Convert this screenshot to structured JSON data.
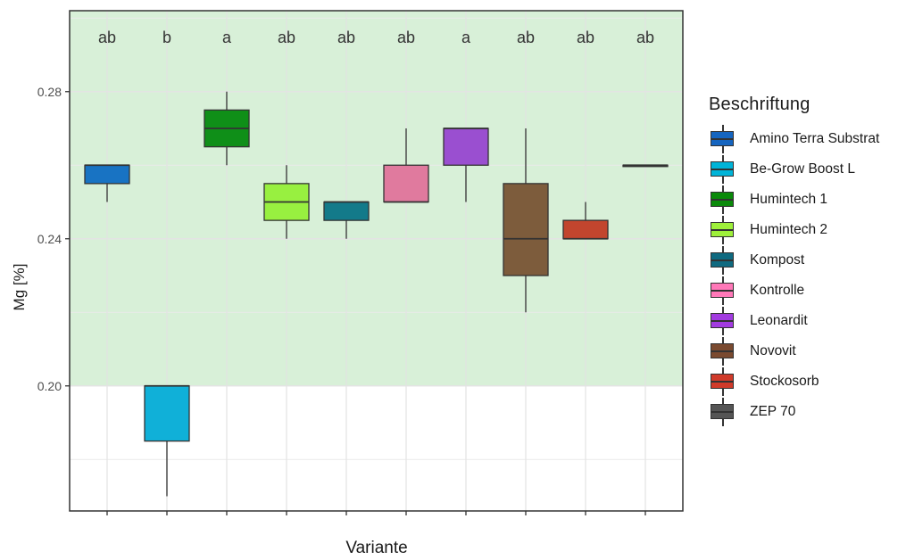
{
  "chart_data": {
    "type": "boxplot",
    "xlabel": "Variante",
    "ylabel": "Mg [%]",
    "ylim": [
      0.166,
      0.302
    ],
    "yticks": [
      "0.20",
      "0.24",
      "0.28"
    ],
    "ytick_values": [
      0.2,
      0.24,
      0.28
    ],
    "reference_band": {
      "from": 0.2,
      "to": 0.302,
      "color": "#d8f0d8"
    },
    "legend_title": "Beschriftung",
    "groups": [
      {
        "name": "Amino Terra Substrat",
        "color": "#1873c3",
        "letter": "ab",
        "min": 0.25,
        "q1": 0.255,
        "median": 0.26,
        "q3": 0.26,
        "max": 0.26
      },
      {
        "name": "Be-Grow Boost L",
        "color": "#10b0d8",
        "letter": "b",
        "min": 0.17,
        "q1": 0.185,
        "median": 0.2,
        "q3": 0.2,
        "max": 0.2
      },
      {
        "name": "Humintech 1",
        "color": "#0f8f18",
        "letter": "a",
        "min": 0.26,
        "q1": 0.265,
        "median": 0.27,
        "q3": 0.275,
        "max": 0.28
      },
      {
        "name": "Humintech 2",
        "color": "#98f040",
        "letter": "ab",
        "min": 0.24,
        "q1": 0.245,
        "median": 0.25,
        "q3": 0.255,
        "max": 0.26
      },
      {
        "name": "Kompost",
        "color": "#137a8a",
        "letter": "ab",
        "min": 0.24,
        "q1": 0.245,
        "median": 0.25,
        "q3": 0.25,
        "max": 0.25
      },
      {
        "name": "Kontrolle",
        "color": "#e07a9e",
        "letter": "ab",
        "min": 0.25,
        "q1": 0.25,
        "median": 0.25,
        "q3": 0.26,
        "max": 0.27
      },
      {
        "name": "Leonardit",
        "color": "#9a4fd0",
        "letter": "a",
        "min": 0.25,
        "q1": 0.26,
        "median": 0.27,
        "q3": 0.27,
        "max": 0.27
      },
      {
        "name": "Novovit",
        "color": "#7d5c3c",
        "letter": "ab",
        "min": 0.22,
        "q1": 0.23,
        "median": 0.24,
        "q3": 0.255,
        "max": 0.27
      },
      {
        "name": "Stockosorb",
        "color": "#c2452e",
        "letter": "ab",
        "min": 0.24,
        "q1": 0.24,
        "median": 0.24,
        "q3": 0.245,
        "max": 0.25
      },
      {
        "name": "ZEP 70",
        "color": "#555555",
        "letter": "ab",
        "min": 0.26,
        "q1": 0.26,
        "median": 0.26,
        "q3": 0.26,
        "max": 0.26
      }
    ],
    "legend_colors": [
      "#1565c0",
      "#00b4d8",
      "#0a8a0a",
      "#9ef03a",
      "#0f6a80",
      "#ff78b8",
      "#a23be0",
      "#7a4a30",
      "#d03a2a",
      "#555555"
    ]
  }
}
